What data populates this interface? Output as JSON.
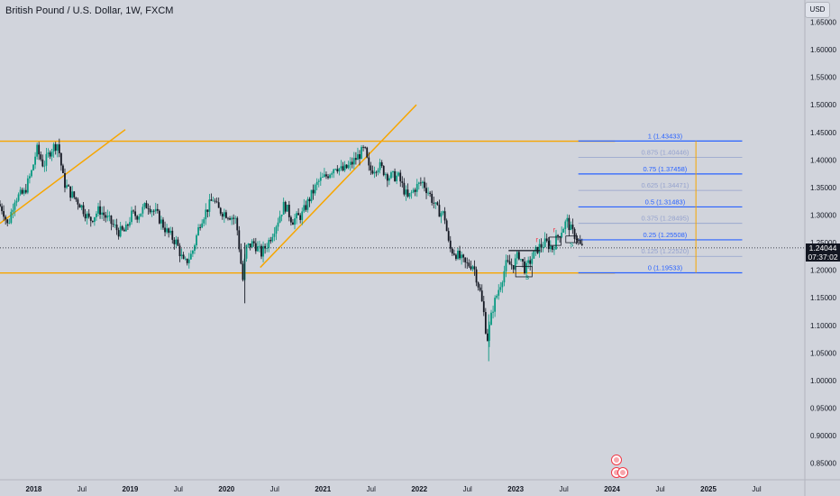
{
  "header": {
    "title": "British Pound / U.S. Dollar, 1W, FXCM",
    "currency": "USD"
  },
  "price_label": {
    "price": "1.24044",
    "countdown": "07:37:02"
  },
  "chart_data": {
    "type": "candlestick",
    "symbol": "GBPUSD",
    "interval": "1W",
    "ylim": [
      0.82,
      1.69
    ],
    "y_ticks": [
      1.65,
      1.6,
      1.55,
      1.5,
      1.45,
      1.4,
      1.35,
      1.3,
      1.25,
      1.2,
      1.15,
      1.1,
      1.05,
      1.0,
      0.95,
      0.9,
      0.85
    ],
    "y_tick_labels": [
      "1.65000",
      "1.60000",
      "1.55000",
      "1.50000",
      "1.45000",
      "1.40000",
      "1.35000",
      "1.30000",
      "1.25000",
      "1.20000",
      "1.15000",
      "1.10000",
      "1.05000",
      "1.00000",
      "0.95000",
      "0.90000",
      "0.85000"
    ],
    "xlim": [
      2017.65,
      2026.0
    ],
    "x_ticks": [
      {
        "t": 2018.0,
        "label": "2018",
        "bold": true
      },
      {
        "t": 2018.5,
        "label": "Jul"
      },
      {
        "t": 2019.0,
        "label": "2019",
        "bold": true
      },
      {
        "t": 2019.5,
        "label": "Jul"
      },
      {
        "t": 2020.0,
        "label": "2020",
        "bold": true
      },
      {
        "t": 2020.5,
        "label": "Jul"
      },
      {
        "t": 2021.0,
        "label": "2021",
        "bold": true
      },
      {
        "t": 2021.5,
        "label": "Jul"
      },
      {
        "t": 2022.0,
        "label": "2022",
        "bold": true
      },
      {
        "t": 2022.5,
        "label": "Jul"
      },
      {
        "t": 2023.0,
        "label": "2023",
        "bold": true
      },
      {
        "t": 2023.5,
        "label": "Jul"
      },
      {
        "t": 2024.0,
        "label": "2024",
        "bold": true
      },
      {
        "t": 2024.5,
        "label": "Jul"
      },
      {
        "t": 2025.0,
        "label": "2025",
        "bold": true
      },
      {
        "t": 2025.5,
        "label": "Jul"
      }
    ],
    "price_path": [
      [
        2017.65,
        1.32
      ],
      [
        2017.7,
        1.31
      ],
      [
        2017.75,
        1.28
      ],
      [
        2017.82,
        1.33
      ],
      [
        2017.92,
        1.34
      ],
      [
        2018.0,
        1.38
      ],
      [
        2018.05,
        1.42
      ],
      [
        2018.12,
        1.39
      ],
      [
        2018.2,
        1.42
      ],
      [
        2018.27,
        1.43
      ],
      [
        2018.33,
        1.36
      ],
      [
        2018.4,
        1.34
      ],
      [
        2018.5,
        1.32
      ],
      [
        2018.6,
        1.29
      ],
      [
        2018.7,
        1.31
      ],
      [
        2018.8,
        1.29
      ],
      [
        2018.9,
        1.27
      ],
      [
        2018.97,
        1.27
      ],
      [
        2019.03,
        1.3
      ],
      [
        2019.1,
        1.3
      ],
      [
        2019.2,
        1.32
      ],
      [
        2019.3,
        1.3
      ],
      [
        2019.4,
        1.27
      ],
      [
        2019.5,
        1.25
      ],
      [
        2019.58,
        1.21
      ],
      [
        2019.66,
        1.23
      ],
      [
        2019.75,
        1.29
      ],
      [
        2019.88,
        1.33
      ],
      [
        2019.93,
        1.31
      ],
      [
        2020.05,
        1.3
      ],
      [
        2020.12,
        1.29
      ],
      [
        2020.19,
        1.18
      ],
      [
        2020.22,
        1.24
      ],
      [
        2020.3,
        1.25
      ],
      [
        2020.38,
        1.23
      ],
      [
        2020.45,
        1.25
      ],
      [
        2020.55,
        1.29
      ],
      [
        2020.62,
        1.32
      ],
      [
        2020.7,
        1.29
      ],
      [
        2020.8,
        1.3
      ],
      [
        2020.88,
        1.33
      ],
      [
        2020.97,
        1.36
      ],
      [
        2021.05,
        1.37
      ],
      [
        2021.15,
        1.39
      ],
      [
        2021.22,
        1.38
      ],
      [
        2021.3,
        1.39
      ],
      [
        2021.4,
        1.41
      ],
      [
        2021.45,
        1.42
      ],
      [
        2021.5,
        1.38
      ],
      [
        2021.6,
        1.39
      ],
      [
        2021.7,
        1.37
      ],
      [
        2021.8,
        1.37
      ],
      [
        2021.9,
        1.33
      ],
      [
        2021.98,
        1.35
      ],
      [
        2022.05,
        1.36
      ],
      [
        2022.12,
        1.34
      ],
      [
        2022.2,
        1.31
      ],
      [
        2022.28,
        1.3
      ],
      [
        2022.33,
        1.24
      ],
      [
        2022.4,
        1.23
      ],
      [
        2022.5,
        1.21
      ],
      [
        2022.58,
        1.21
      ],
      [
        2022.65,
        1.16
      ],
      [
        2022.7,
        1.11
      ],
      [
        2022.72,
        1.07
      ],
      [
        2022.78,
        1.13
      ],
      [
        2022.85,
        1.17
      ],
      [
        2022.92,
        1.21
      ],
      [
        2023.0,
        1.21
      ],
      [
        2023.05,
        1.23
      ],
      [
        2023.12,
        1.2
      ],
      [
        2023.18,
        1.22
      ],
      [
        2023.25,
        1.24
      ],
      [
        2023.33,
        1.25
      ],
      [
        2023.4,
        1.24
      ],
      [
        2023.45,
        1.26
      ],
      [
        2023.52,
        1.28
      ],
      [
        2023.55,
        1.29
      ],
      [
        2023.6,
        1.27
      ],
      [
        2023.65,
        1.26
      ],
      [
        2023.7,
        1.24
      ]
    ],
    "support_level": 1.195,
    "resistance_level": 1.434,
    "fibonacci": {
      "levels": [
        {
          "ratio": "1",
          "price": "1.43433",
          "label": "1 (1.43433)",
          "major": true
        },
        {
          "ratio": "0.875",
          "price": "1.40446",
          "label": "0.875 (1.40446)",
          "major": false
        },
        {
          "ratio": "0.75",
          "price": "1.37458",
          "label": "0.75 (1.37458)",
          "major": true
        },
        {
          "ratio": "0.625",
          "price": "1.34471",
          "label": "0.625 (1.34471)",
          "major": false
        },
        {
          "ratio": "0.5",
          "price": "1.31483",
          "label": "0.5 (1.31483)",
          "major": true
        },
        {
          "ratio": "0.375",
          "price": "1.28495",
          "label": "0.375 (1.28495)",
          "major": false
        },
        {
          "ratio": "0.25",
          "price": "1.25508",
          "label": "0.25 (1.25508)",
          "major": true
        },
        {
          "ratio": "0.125",
          "price": "1.22520",
          "label": "0.125 (1.22520)",
          "major": false
        },
        {
          "ratio": "0",
          "price": "1.19533",
          "label": "0 (1.19533)",
          "major": true
        }
      ]
    },
    "trendlines": [
      {
        "from": [
          2017.65,
          1.285
        ],
        "to": [
          2018.95,
          1.455
        ]
      },
      {
        "from": [
          2020.35,
          1.205
        ],
        "to": [
          2021.97,
          1.5
        ]
      }
    ],
    "pattern_markers": [
      {
        "text": "s",
        "t": 2023.12,
        "price": 1.183,
        "color": "#089981"
      },
      {
        "text": "r",
        "t": 2023.22,
        "price": 1.251,
        "color": "#f23645"
      },
      {
        "text": "r",
        "t": 2023.4,
        "price": 1.269,
        "color": "#f23645"
      },
      {
        "text": "s",
        "t": 2023.58,
        "price": 1.243,
        "color": "#089981"
      }
    ],
    "pattern_boxes": [
      {
        "t0": 2023.0,
        "t1": 2023.17,
        "p0": 1.188,
        "p1": 1.207
      },
      {
        "t0": 2022.93,
        "t1": 2023.25,
        "p0": 1.236,
        "p1": 1.236
      },
      {
        "t0": 2023.35,
        "t1": 2023.47,
        "p0": 1.245,
        "p1": 1.26
      },
      {
        "t0": 2023.52,
        "t1": 2023.64,
        "p0": 1.25,
        "p1": 1.262
      }
    ],
    "current_price": 1.24044
  },
  "colors": {
    "background": "#d1d4dc",
    "bull": "#089981",
    "bear": "#131722",
    "support_resistance": "#f7a600",
    "trendline": "#f7a600",
    "fib_major": "#2962ff",
    "fib_minor": "#7a8cc7",
    "fib_axis": "#f7a600"
  }
}
